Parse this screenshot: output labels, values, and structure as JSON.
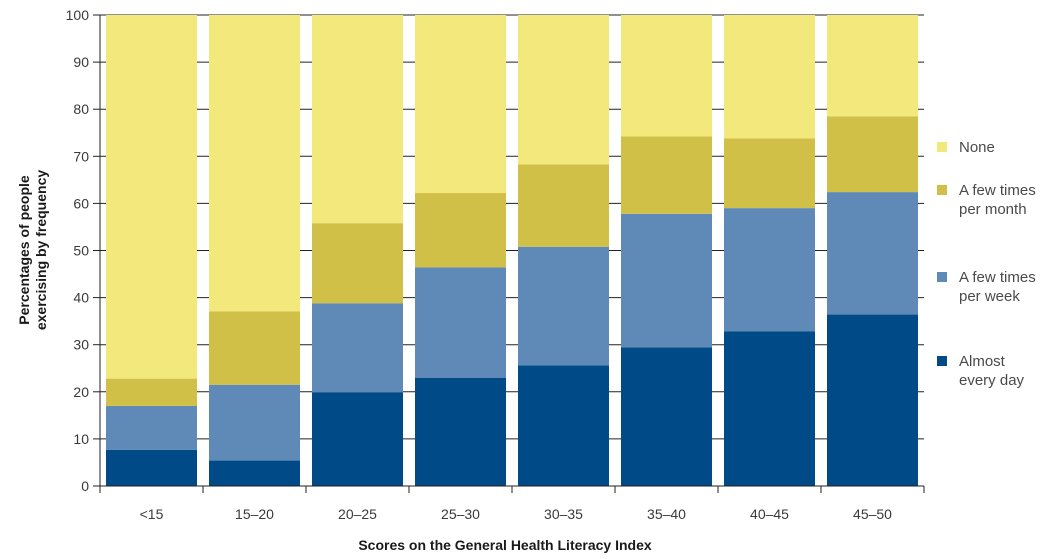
{
  "chart_data": {
    "type": "bar",
    "stacked": true,
    "categories": [
      "<15",
      "15–20",
      "20–25",
      "25–30",
      "30–35",
      "35–40",
      "40–45",
      "45–50"
    ],
    "series": [
      {
        "name": "Almost every day",
        "legend_lines": [
          "Almost",
          "every day"
        ],
        "color": "#004b87",
        "values": [
          7.7,
          5.4,
          19.9,
          23.0,
          25.6,
          29.4,
          32.8,
          36.4
        ]
      },
      {
        "name": "A few times per week",
        "legend_lines": [
          "A few times",
          "per week"
        ],
        "color": "#5f8ab8",
        "values": [
          9.3,
          16.1,
          18.9,
          23.4,
          25.2,
          28.4,
          26.2,
          26.0
        ]
      },
      {
        "name": "A few times per month",
        "legend_lines": [
          "A few times",
          "per month"
        ],
        "color": "#d1c048",
        "values": [
          5.8,
          15.6,
          17.0,
          15.8,
          17.5,
          16.4,
          14.8,
          16.1
        ]
      },
      {
        "name": "None",
        "legend_lines": [
          "None"
        ],
        "color": "#f2e87c",
        "values": [
          77.2,
          62.9,
          44.2,
          37.8,
          31.7,
          25.8,
          26.2,
          21.5
        ]
      }
    ],
    "legend_order": [
      "None",
      "A few times per month",
      "A few times per week",
      "Almost every day"
    ],
    "xlabel": "Scores on the General Health Literacy Index",
    "ylabel_lines": [
      "Percentages of people",
      "exercising by frequency"
    ],
    "ylim": [
      0,
      100
    ],
    "yticks": [
      0,
      10,
      20,
      30,
      40,
      50,
      60,
      70,
      80,
      90,
      100
    ],
    "grid": true,
    "legend_position": "right"
  }
}
